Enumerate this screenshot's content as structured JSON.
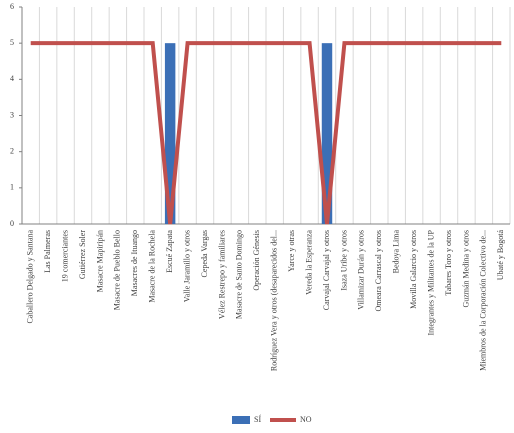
{
  "chart_data": {
    "type": "bar",
    "categories": [
      "Caballero Delgado y Santana",
      "Las Palmeras",
      "19 comerciantes",
      "Gutiérrez Soler",
      "Masacre Mapiripán",
      "Masacre de Pueblo Bello",
      "Masacres de Ituango",
      "Masacre de la Rochela",
      "Escué Zapata",
      "Valle Jaramillo y otros",
      "Cepeda Vargas",
      "Vélez Restrepo y familiares",
      "Masacre de Santo Domingo",
      "Operación Génesis",
      "Rodríguez Vera y otros (desaparecidos del...",
      "Yarce y otras",
      "Vereda la Esperanza",
      "Carvajal Carvajal y otros",
      "Isaza Uribe y otros",
      "Villamizar Durán y otros",
      "Omeara Carrascal y otros",
      "Bedoya Lima",
      "Movilla Galarcio y otros",
      "Integrantes y Militantes de la UP",
      "Tabares Toro y otros",
      "Guzmán Medina y otros",
      "Miembros de la Corporación Colectivo de...",
      "Ubaté y Bogotá"
    ],
    "series": [
      {
        "name": "SÍ",
        "type": "bar",
        "color": "#3b6fb6",
        "values": [
          0,
          0,
          0,
          0,
          0,
          0,
          0,
          0,
          5,
          0,
          0,
          0,
          0,
          0,
          0,
          0,
          0,
          5,
          0,
          0,
          0,
          0,
          0,
          0,
          0,
          0,
          0,
          0
        ]
      },
      {
        "name": "NO",
        "type": "line",
        "color": "#c0504d",
        "values": [
          5,
          5,
          5,
          5,
          5,
          5,
          5,
          5,
          0,
          5,
          5,
          5,
          5,
          5,
          5,
          5,
          5,
          0,
          5,
          5,
          5,
          5,
          5,
          5,
          5,
          5,
          5,
          5
        ]
      }
    ],
    "ylim": [
      0,
      6
    ],
    "yticks": [
      0,
      1,
      2,
      3,
      4,
      5,
      6
    ],
    "grid": true,
    "legend": "bottom"
  }
}
